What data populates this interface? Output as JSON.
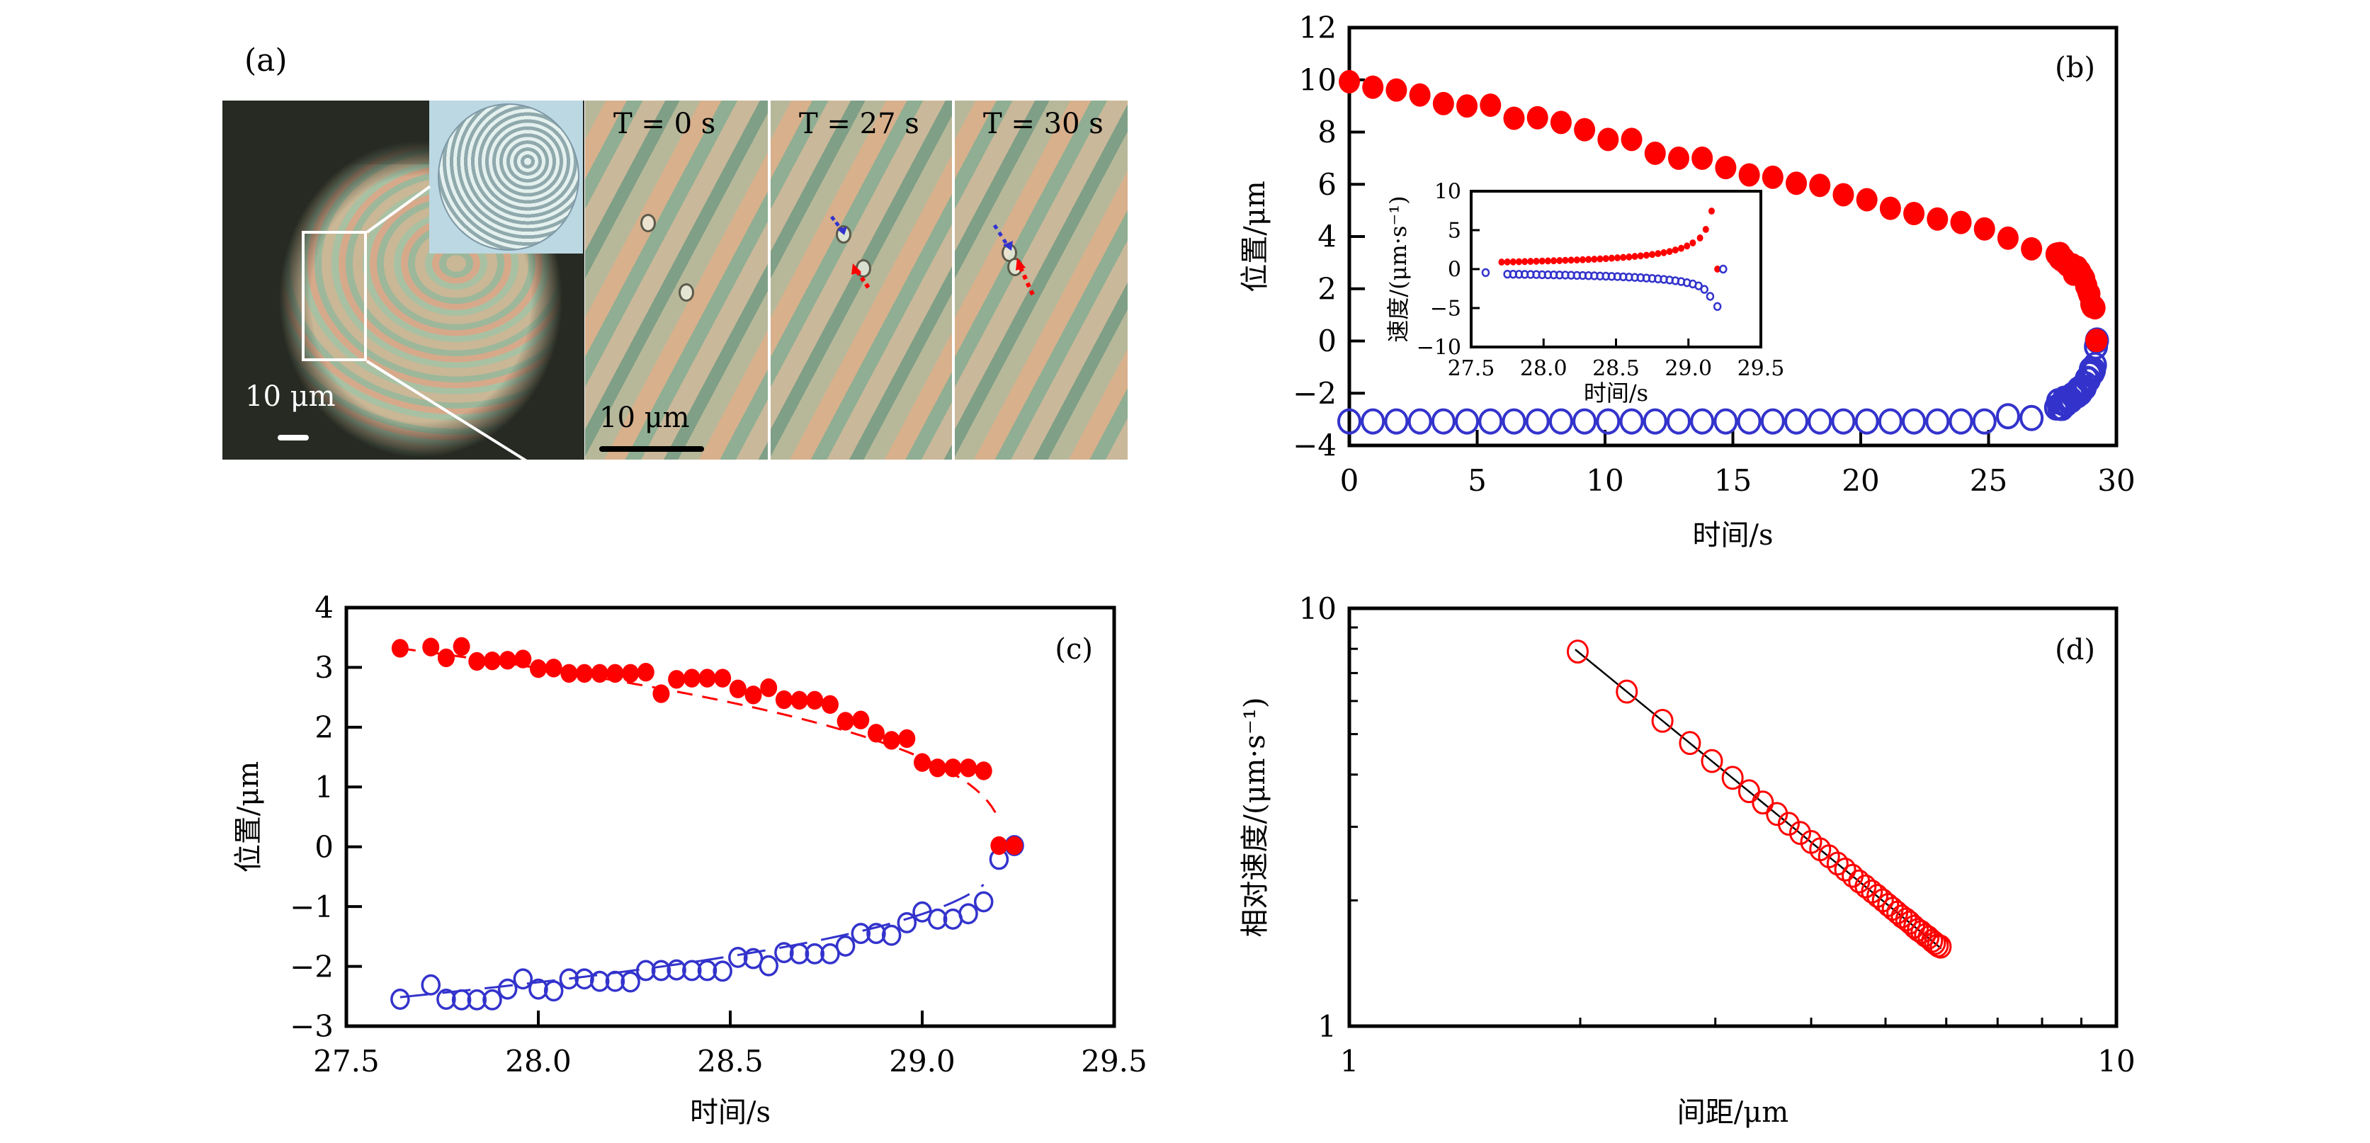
{
  "panel_a": {
    "label": "(a)",
    "frames": [
      {
        "label": "T = 0 s"
      },
      {
        "label": "T = 27 s"
      },
      {
        "label": "T = 30 s"
      }
    ],
    "scale_main": "10 μm",
    "scale_frames": "10 μm",
    "colors": {
      "particle_1_arrow": "#3333cc",
      "particle_2_arrow": "#ff0000"
    }
  },
  "chart_data": [
    {
      "id": "b",
      "panel_tag": "(b)",
      "type": "scatter",
      "xlabel": "时间/s",
      "ylabel": "位置/μm",
      "xlim": [
        0,
        30
      ],
      "ylim": [
        -4,
        12
      ],
      "xticks": [
        0,
        5,
        10,
        15,
        20,
        25,
        30
      ],
      "xtick_labels": [
        "0",
        "5",
        "10",
        "15",
        "20",
        "25",
        "30"
      ],
      "yticks": [
        -4,
        -2,
        0,
        2,
        4,
        6,
        8,
        10,
        12
      ],
      "ytick_labels": [
        "−4",
        "−2",
        "0",
        "2",
        "4",
        "6",
        "8",
        "10",
        "12"
      ],
      "grid": false,
      "series": [
        {
          "name": "particle-red",
          "marker": "filled-circle",
          "color": "#ff0000",
          "x": [
            0,
            0.92,
            1.84,
            2.76,
            3.68,
            4.6,
            5.52,
            6.44,
            7.36,
            8.28,
            9.2,
            10.12,
            11.04,
            11.96,
            12.88,
            13.8,
            14.72,
            15.64,
            16.56,
            17.48,
            18.4,
            19.32,
            20.24,
            21.16,
            22.08,
            23.0,
            23.92,
            24.84,
            25.76,
            26.68,
            27.64,
            27.72,
            27.76,
            27.8,
            27.84,
            27.88,
            27.92,
            27.96,
            28.0,
            28.04,
            28.08,
            28.12,
            28.16,
            28.2,
            28.24,
            28.28,
            28.32,
            28.36,
            28.4,
            28.44,
            28.48,
            28.52,
            28.56,
            28.6,
            28.64,
            28.68,
            28.72,
            28.76,
            28.8,
            28.84,
            28.88,
            28.92,
            28.96,
            29.0,
            29.04,
            29.08,
            29.12,
            29.16,
            29.2,
            29.24
          ],
          "y": [
            9.93,
            9.72,
            9.61,
            9.42,
            9.09,
            9.0,
            9.03,
            8.53,
            8.55,
            8.37,
            8.09,
            7.72,
            7.72,
            7.19,
            7.0,
            7.0,
            6.64,
            6.36,
            6.27,
            6.04,
            5.96,
            5.6,
            5.41,
            5.08,
            4.88,
            4.67,
            4.54,
            4.29,
            3.94,
            3.53,
            3.32,
            3.34,
            3.16,
            3.35,
            3.1,
            3.11,
            3.12,
            3.14,
            2.98,
            2.99,
            2.9,
            2.9,
            2.9,
            2.9,
            2.9,
            2.92,
            2.56,
            2.8,
            2.82,
            2.82,
            2.82,
            2.64,
            2.54,
            2.66,
            2.46,
            2.45,
            2.45,
            2.38,
            2.1,
            2.12,
            1.9,
            1.78,
            1.81,
            1.41,
            1.32,
            1.32,
            1.32,
            1.27,
            0.02,
            0.02
          ]
        },
        {
          "name": "particle-blue",
          "marker": "open-circle",
          "color": "#3333cc",
          "x": [
            0,
            0.92,
            1.84,
            2.76,
            3.68,
            4.6,
            5.52,
            6.44,
            7.36,
            8.28,
            9.2,
            10.12,
            11.04,
            11.96,
            12.88,
            13.8,
            14.72,
            15.64,
            16.56,
            17.48,
            18.4,
            19.32,
            20.24,
            21.16,
            22.08,
            23.0,
            23.92,
            24.84,
            25.76,
            26.68,
            27.64,
            27.72,
            27.76,
            27.8,
            27.84,
            27.88,
            27.92,
            27.96,
            28.0,
            28.04,
            28.08,
            28.12,
            28.16,
            28.2,
            28.24,
            28.28,
            28.32,
            28.36,
            28.4,
            28.44,
            28.48,
            28.52,
            28.56,
            28.6,
            28.64,
            28.68,
            28.72,
            28.76,
            28.8,
            28.84,
            28.88,
            28.92,
            28.96,
            29.0,
            29.04,
            29.08,
            29.12,
            29.16,
            29.2,
            29.24
          ],
          "y": [
            -3.08,
            -3.08,
            -3.08,
            -3.08,
            -3.08,
            -3.08,
            -3.08,
            -3.08,
            -3.08,
            -3.08,
            -3.08,
            -3.08,
            -3.08,
            -3.08,
            -3.08,
            -3.08,
            -3.08,
            -3.08,
            -3.08,
            -3.08,
            -3.08,
            -3.08,
            -3.08,
            -3.08,
            -3.08,
            -3.08,
            -3.08,
            -3.08,
            -2.88,
            -2.95,
            -2.55,
            -2.31,
            -2.55,
            -2.56,
            -2.56,
            -2.56,
            -2.38,
            -2.21,
            -2.38,
            -2.41,
            -2.21,
            -2.21,
            -2.25,
            -2.25,
            -2.26,
            -2.07,
            -2.07,
            -2.06,
            -2.07,
            -2.07,
            -2.08,
            -1.85,
            -1.87,
            -1.99,
            -1.77,
            -1.79,
            -1.79,
            -1.79,
            -1.66,
            -1.45,
            -1.45,
            -1.48,
            -1.27,
            -1.09,
            -1.21,
            -1.21,
            -1.12,
            -0.92,
            -0.21,
            0.02
          ]
        }
      ],
      "inset": {
        "type": "scatter",
        "xlabel": "时间/s",
        "ylabel": "速度/(μm·s⁻¹)",
        "xlim": [
          27.5,
          29.5
        ],
        "ylim": [
          -10,
          10
        ],
        "xticks": [
          27.5,
          28.0,
          28.5,
          29.0,
          29.5
        ],
        "xtick_labels": [
          "27.5",
          "28.0",
          "28.5",
          "29.0",
          "29.5"
        ],
        "yticks": [
          -10,
          -5,
          0,
          5,
          10
        ],
        "ytick_labels": [
          "−10",
          "−5",
          "0",
          "5",
          "10"
        ],
        "series": [
          {
            "name": "velocity-red",
            "marker": "filled-circle",
            "color": "#ff0000",
            "x": [
              27.71,
              27.75,
              27.79,
              27.83,
              27.87,
              27.91,
              27.95,
              27.99,
              28.03,
              28.07,
              28.11,
              28.15,
              28.19,
              28.23,
              28.27,
              28.31,
              28.35,
              28.39,
              28.43,
              28.47,
              28.51,
              28.55,
              28.59,
              28.63,
              28.67,
              28.71,
              28.75,
              28.79,
              28.83,
              28.87,
              28.91,
              28.95,
              28.99,
              29.03,
              29.08,
              29.12,
              29.16,
              29.2
            ],
            "y": [
              0.9,
              0.92,
              0.93,
              0.95,
              0.97,
              0.99,
              1.01,
              1.03,
              1.05,
              1.07,
              1.09,
              1.12,
              1.15,
              1.17,
              1.21,
              1.24,
              1.27,
              1.31,
              1.35,
              1.4,
              1.45,
              1.5,
              1.56,
              1.63,
              1.7,
              1.78,
              1.88,
              1.99,
              2.11,
              2.26,
              2.45,
              2.67,
              2.97,
              3.36,
              4.0,
              5.1,
              7.45,
              0
            ]
          },
          {
            "name": "velocity-blue",
            "marker": "open-circle",
            "color": "#3333cc",
            "x": [
              27.6,
              27.75,
              27.79,
              27.83,
              27.87,
              27.91,
              27.95,
              27.99,
              28.03,
              28.07,
              28.11,
              28.15,
              28.19,
              28.23,
              28.27,
              28.31,
              28.35,
              28.39,
              28.43,
              28.47,
              28.51,
              28.55,
              28.59,
              28.63,
              28.67,
              28.71,
              28.75,
              28.79,
              28.83,
              28.87,
              28.91,
              28.95,
              28.99,
              29.03,
              29.07,
              29.11,
              29.15,
              29.2,
              29.24
            ],
            "y": [
              -0.45,
              -0.65,
              -0.66,
              -0.67,
              -0.68,
              -0.69,
              -0.7,
              -0.72,
              -0.73,
              -0.74,
              -0.76,
              -0.77,
              -0.79,
              -0.81,
              -0.82,
              -0.84,
              -0.86,
              -0.89,
              -0.91,
              -0.94,
              -0.96,
              -0.99,
              -1.03,
              -1.06,
              -1.1,
              -1.15,
              -1.2,
              -1.26,
              -1.32,
              -1.4,
              -1.49,
              -1.6,
              -1.74,
              -1.91,
              -2.15,
              -2.6,
              -3.5,
              -4.8,
              0
            ]
          }
        ]
      }
    },
    {
      "id": "c",
      "panel_tag": "(c)",
      "type": "scatter",
      "xlabel": "时间/s",
      "ylabel": "位置/μm",
      "xlim": [
        27.5,
        29.5
      ],
      "ylim": [
        -3,
        4
      ],
      "xticks": [
        27.5,
        28.0,
        28.5,
        29.0,
        29.5
      ],
      "xtick_labels": [
        "27.5",
        "28.0",
        "28.5",
        "29.0",
        "29.5"
      ],
      "yticks": [
        -3,
        -2,
        -1,
        0,
        1,
        2,
        3,
        4
      ],
      "ytick_labels": [
        "−3",
        "−2",
        "−1",
        "0",
        "1",
        "2",
        "3",
        "4"
      ],
      "grid": false,
      "series": [
        {
          "name": "particle-red",
          "marker": "filled-circle",
          "color": "#ff0000",
          "x": [
            27.64,
            27.72,
            27.76,
            27.8,
            27.84,
            27.88,
            27.92,
            27.96,
            28.0,
            28.04,
            28.08,
            28.12,
            28.16,
            28.2,
            28.24,
            28.28,
            28.32,
            28.36,
            28.4,
            28.44,
            28.48,
            28.52,
            28.56,
            28.6,
            28.64,
            28.68,
            28.72,
            28.76,
            28.8,
            28.84,
            28.88,
            28.92,
            28.96,
            29.0,
            29.04,
            29.08,
            29.12,
            29.16,
            29.2,
            29.24
          ],
          "y": [
            3.32,
            3.34,
            3.16,
            3.35,
            3.1,
            3.11,
            3.12,
            3.14,
            2.98,
            2.99,
            2.9,
            2.9,
            2.9,
            2.9,
            2.9,
            2.92,
            2.56,
            2.8,
            2.82,
            2.82,
            2.82,
            2.64,
            2.54,
            2.66,
            2.46,
            2.45,
            2.45,
            2.38,
            2.1,
            2.12,
            1.9,
            1.78,
            1.81,
            1.41,
            1.32,
            1.32,
            1.32,
            1.27,
            0.02,
            0.02
          ]
        },
        {
          "name": "particle-blue",
          "marker": "open-circle",
          "color": "#3333cc",
          "x": [
            27.64,
            27.72,
            27.76,
            27.8,
            27.84,
            27.88,
            27.92,
            27.96,
            28.0,
            28.04,
            28.08,
            28.12,
            28.16,
            28.2,
            28.24,
            28.28,
            28.32,
            28.36,
            28.4,
            28.44,
            28.48,
            28.52,
            28.56,
            28.6,
            28.64,
            28.68,
            28.72,
            28.76,
            28.8,
            28.84,
            28.88,
            28.92,
            28.96,
            29.0,
            29.04,
            29.08,
            29.12,
            29.16,
            29.2,
            29.24
          ],
          "y": [
            -2.55,
            -2.31,
            -2.55,
            -2.56,
            -2.56,
            -2.56,
            -2.38,
            -2.21,
            -2.38,
            -2.41,
            -2.21,
            -2.21,
            -2.25,
            -2.25,
            -2.26,
            -2.07,
            -2.07,
            -2.06,
            -2.07,
            -2.07,
            -2.08,
            -1.85,
            -1.87,
            -1.99,
            -1.77,
            -1.79,
            -1.79,
            -1.79,
            -1.66,
            -1.45,
            -1.45,
            -1.48,
            -1.27,
            -1.09,
            -1.21,
            -1.21,
            -1.12,
            -0.92,
            -0.21,
            0.02
          ]
        }
      ],
      "fits": [
        {
          "name": "fit-red",
          "style": "dashed",
          "color": "#ff0000",
          "form": "y = 2.77*(29.21 - t)^0.4",
          "t_range": [
            27.64,
            29.21
          ]
        },
        {
          "name": "fit-blue",
          "style": "solid",
          "color": "#3333cc",
          "form": "y = -2.1*(29.21 - t)^0.4",
          "t_range": [
            27.64,
            29.16
          ]
        }
      ]
    },
    {
      "id": "d",
      "panel_tag": "(d)",
      "type": "scatter",
      "xscale": "log",
      "yscale": "log",
      "xlabel": "间距/μm",
      "ylabel": "相对速度/(μm·s⁻¹)",
      "xlim": [
        1,
        10
      ],
      "ylim": [
        1,
        10
      ],
      "xtick_labels": [
        "1",
        "10"
      ],
      "ytick_labels": [
        "1",
        "10"
      ],
      "grid": false,
      "series": [
        {
          "name": "relative-velocity",
          "marker": "open-circle",
          "color": "#ff0000",
          "x": [
            1.985,
            2.3,
            2.56,
            2.78,
            2.97,
            3.16,
            3.32,
            3.46,
            3.61,
            3.74,
            3.87,
            4.0,
            4.11,
            4.22,
            4.33,
            4.43,
            4.53,
            4.62,
            4.71,
            4.8,
            4.88,
            4.96,
            5.04,
            5.11,
            5.18,
            5.25,
            5.32,
            5.38,
            5.45,
            5.51,
            5.57,
            5.63,
            5.69,
            5.75,
            5.8,
            5.85,
            5.9
          ],
          "y": [
            7.88,
            6.32,
            5.38,
            4.76,
            4.31,
            3.93,
            3.65,
            3.43,
            3.22,
            3.05,
            2.9,
            2.76,
            2.65,
            2.55,
            2.45,
            2.37,
            2.29,
            2.22,
            2.16,
            2.1,
            2.05,
            2.0,
            1.95,
            1.91,
            1.87,
            1.83,
            1.8,
            1.77,
            1.73,
            1.7,
            1.68,
            1.65,
            1.63,
            1.6,
            1.58,
            1.56,
            1.55
          ]
        }
      ],
      "fits": [
        {
          "name": "power-law-fit",
          "style": "solid",
          "color": "#000000",
          "form": "v = 7.88*(d/1.985)^-1.5",
          "d_range": [
            1.985,
            5.9
          ]
        }
      ]
    }
  ]
}
